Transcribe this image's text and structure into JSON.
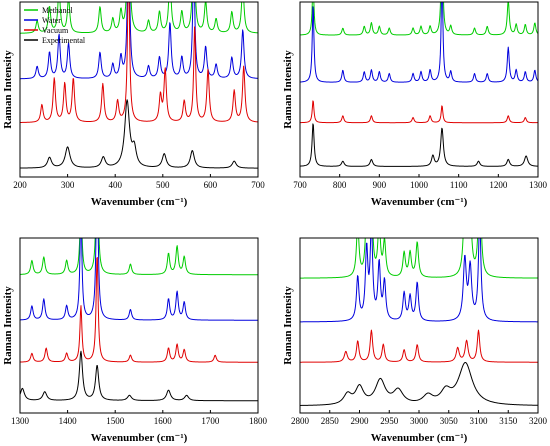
{
  "chart_data": [
    {
      "id": "p1",
      "type": "line",
      "xlabel": "Wavenumber (cm⁻¹)",
      "ylabel": "Raman Intensity",
      "xlim": [
        200,
        700
      ],
      "xticks": [
        "200",
        "300",
        "400",
        "500",
        "600",
        "700"
      ],
      "y_ticks_shown": false,
      "legend": "top-left",
      "series": [
        {
          "name": "Methanol",
          "color": "#00cc00",
          "offset": 0.78,
          "baseline": 0.04,
          "peaks": [
            [
              236,
              0.07,
              3
            ],
            [
              262,
              0.15,
              3
            ],
            [
              282,
              0.25,
              3
            ],
            [
              302,
              0.2,
              3
            ],
            [
              368,
              0.15,
              3
            ],
            [
              395,
              0.08,
              3
            ],
            [
              412,
              0.12,
              3
            ],
            [
              428,
              1.0,
              2.5
            ],
            [
              470,
              0.07,
              3
            ],
            [
              493,
              0.12,
              3
            ],
            [
              515,
              0.32,
              3
            ],
            [
              540,
              0.12,
              3
            ],
            [
              565,
              0.7,
              2.5
            ],
            [
              590,
              0.18,
              3
            ],
            [
              612,
              0.08,
              3
            ],
            [
              645,
              0.12,
              3
            ],
            [
              668,
              0.28,
              3
            ]
          ]
        },
        {
          "name": "Water",
          "color": "#0000dd",
          "offset": 0.52,
          "baseline": 0.04,
          "peaks": [
            [
              236,
              0.07,
              3
            ],
            [
              262,
              0.15,
              3
            ],
            [
              282,
              0.25,
              3
            ],
            [
              302,
              0.2,
              3
            ],
            [
              368,
              0.15,
              3
            ],
            [
              395,
              0.08,
              3
            ],
            [
              412,
              0.12,
              3
            ],
            [
              428,
              1.0,
              2.5
            ],
            [
              470,
              0.07,
              3
            ],
            [
              493,
              0.12,
              3
            ],
            [
              515,
              0.32,
              3
            ],
            [
              540,
              0.12,
              3
            ],
            [
              565,
              0.7,
              2.5
            ],
            [
              590,
              0.18,
              3
            ],
            [
              612,
              0.08,
              3
            ],
            [
              645,
              0.12,
              3
            ],
            [
              668,
              0.28,
              3
            ]
          ]
        },
        {
          "name": "Vacuum",
          "color": "#e00000",
          "offset": 0.27,
          "baseline": 0.04,
          "peaks": [
            [
              246,
              0.1,
              3
            ],
            [
              272,
              0.25,
              3
            ],
            [
              294,
              0.22,
              3
            ],
            [
              312,
              0.25,
              3
            ],
            [
              374,
              0.22,
              3
            ],
            [
              405,
              0.12,
              3
            ],
            [
              428,
              0.92,
              2.5
            ],
            [
              495,
              0.15,
              3
            ],
            [
              505,
              0.3,
              3
            ],
            [
              545,
              0.12,
              3
            ],
            [
              567,
              0.55,
              2.5
            ],
            [
              595,
              0.3,
              3
            ],
            [
              650,
              0.18,
              3
            ],
            [
              670,
              0.32,
              3
            ]
          ]
        },
        {
          "name": "Experimental",
          "color": "#000000",
          "offset": 0.02,
          "baseline": 0.03,
          "peaks": [
            [
              262,
              0.06,
              5
            ],
            [
              300,
              0.12,
              6
            ],
            [
              375,
              0.06,
              5
            ],
            [
              425,
              0.38,
              6
            ],
            [
              440,
              0.1,
              5
            ],
            [
              503,
              0.08,
              5
            ],
            [
              562,
              0.1,
              5
            ],
            [
              650,
              0.04,
              5
            ]
          ]
        }
      ]
    },
    {
      "id": "p2",
      "type": "line",
      "xlabel": "Wavenumber (cm⁻¹)",
      "ylabel": "Raman Intensity",
      "xlim": [
        700,
        1300
      ],
      "xticks": [
        "700",
        "800",
        "900",
        "1000",
        "1100",
        "1200",
        "1300"
      ],
      "y_ticks_shown": false,
      "series": [
        {
          "name": "Methanol",
          "color": "#00cc00",
          "offset": 0.77,
          "baseline": 0.04,
          "peaks": [
            [
              733,
              0.3,
              2.5
            ],
            [
              808,
              0.04,
              3
            ],
            [
              862,
              0.05,
              3
            ],
            [
              880,
              0.07,
              3
            ],
            [
              900,
              0.05,
              3
            ],
            [
              925,
              0.04,
              3
            ],
            [
              985,
              0.04,
              3
            ],
            [
              1005,
              0.05,
              3
            ],
            [
              1028,
              0.05,
              3
            ],
            [
              1058,
              0.62,
              2.5
            ],
            [
              1080,
              0.05,
              3
            ],
            [
              1140,
              0.04,
              3
            ],
            [
              1172,
              0.05,
              3
            ],
            [
              1225,
              0.2,
              3
            ],
            [
              1245,
              0.06,
              3
            ],
            [
              1268,
              0.06,
              3
            ],
            [
              1292,
              0.07,
              3
            ]
          ]
        },
        {
          "name": "Water",
          "color": "#0000dd",
          "offset": 0.5,
          "baseline": 0.04,
          "peaks": [
            [
              733,
              0.45,
              2.5
            ],
            [
              808,
              0.07,
              3
            ],
            [
              862,
              0.06,
              3
            ],
            [
              880,
              0.07,
              3
            ],
            [
              900,
              0.06,
              3
            ],
            [
              925,
              0.05,
              3
            ],
            [
              985,
              0.05,
              3
            ],
            [
              1005,
              0.06,
              3
            ],
            [
              1028,
              0.07,
              3
            ],
            [
              1058,
              0.62,
              2.5
            ],
            [
              1080,
              0.06,
              3
            ],
            [
              1140,
              0.05,
              3
            ],
            [
              1172,
              0.05,
              3
            ],
            [
              1225,
              0.2,
              3
            ],
            [
              1245,
              0.07,
              3
            ],
            [
              1268,
              0.06,
              3
            ],
            [
              1292,
              0.07,
              3
            ]
          ]
        },
        {
          "name": "Vacuum",
          "color": "#e00000",
          "offset": 0.27,
          "baseline": 0.04,
          "peaks": [
            [
              733,
              0.13,
              2.5
            ],
            [
              808,
              0.04,
              3
            ],
            [
              880,
              0.04,
              3
            ],
            [
              985,
              0.03,
              3
            ],
            [
              1028,
              0.04,
              3
            ],
            [
              1058,
              0.1,
              2.5
            ],
            [
              1225,
              0.04,
              3
            ],
            [
              1268,
              0.03,
              3
            ]
          ]
        },
        {
          "name": "Experimental",
          "color": "#000000",
          "offset": 0.02,
          "baseline": 0.04,
          "peaks": [
            [
              733,
              0.25,
              3
            ],
            [
              808,
              0.03,
              4
            ],
            [
              880,
              0.04,
              4
            ],
            [
              1035,
              0.06,
              4
            ],
            [
              1058,
              0.22,
              4
            ],
            [
              1150,
              0.03,
              4
            ],
            [
              1225,
              0.04,
              4
            ],
            [
              1270,
              0.06,
              5
            ]
          ]
        }
      ]
    },
    {
      "id": "p3",
      "type": "line",
      "xlabel": "Wavenumber (cm⁻¹)",
      "ylabel": "Raman Intensity",
      "xlim": [
        1300,
        1800
      ],
      "xticks": [
        "1300",
        "1400",
        "1500",
        "1600",
        "1700",
        "1800"
      ],
      "y_ticks_shown": false,
      "series": [
        {
          "name": "Methanol",
          "color": "#00cc00",
          "offset": 0.76,
          "baseline": 0.03,
          "peaks": [
            [
              1325,
              0.08,
              3
            ],
            [
              1350,
              0.1,
              3
            ],
            [
              1398,
              0.08,
              3
            ],
            [
              1428,
              0.42,
              2.5
            ],
            [
              1462,
              0.75,
              2.5
            ],
            [
              1532,
              0.06,
              3
            ],
            [
              1612,
              0.12,
              3
            ],
            [
              1630,
              0.16,
              3
            ],
            [
              1645,
              0.1,
              3
            ]
          ]
        },
        {
          "name": "Water",
          "color": "#0000dd",
          "offset": 0.5,
          "baseline": 0.03,
          "peaks": [
            [
              1325,
              0.08,
              3
            ],
            [
              1350,
              0.12,
              3
            ],
            [
              1398,
              0.08,
              3
            ],
            [
              1428,
              0.62,
              2.5
            ],
            [
              1462,
              0.9,
              2.5
            ],
            [
              1532,
              0.06,
              3
            ],
            [
              1612,
              0.12,
              3
            ],
            [
              1630,
              0.16,
              3
            ],
            [
              1645,
              0.1,
              3
            ]
          ]
        },
        {
          "name": "Vacuum",
          "color": "#e00000",
          "offset": 0.26,
          "baseline": 0.03,
          "peaks": [
            [
              1325,
              0.05,
              3
            ],
            [
              1355,
              0.08,
              3
            ],
            [
              1398,
              0.05,
              3
            ],
            [
              1428,
              0.32,
              2.5
            ],
            [
              1462,
              0.62,
              2.5
            ],
            [
              1532,
              0.04,
              3
            ],
            [
              1612,
              0.08,
              3
            ],
            [
              1630,
              0.1,
              3
            ],
            [
              1645,
              0.07,
              3
            ],
            [
              1710,
              0.04,
              3
            ]
          ]
        },
        {
          "name": "Experimental",
          "color": "#000000",
          "offset": 0.02,
          "baseline": 0.05,
          "peaks": [
            [
              1305,
              0.07,
              5
            ],
            [
              1352,
              0.05,
              5
            ],
            [
              1428,
              0.28,
              4
            ],
            [
              1462,
              0.2,
              4
            ],
            [
              1530,
              0.03,
              5
            ],
            [
              1612,
              0.06,
              5
            ],
            [
              1650,
              0.03,
              5
            ]
          ]
        }
      ]
    },
    {
      "id": "p4",
      "type": "line",
      "xlabel": "Wavenumber (cm⁻¹)",
      "ylabel": "Raman Intensity",
      "xlim": [
        2800,
        3200
      ],
      "xticks": [
        "2800",
        "2850",
        "2900",
        "2950",
        "3000",
        "3050",
        "3100",
        "3150",
        "3200"
      ],
      "y_ticks_shown": false,
      "series": [
        {
          "name": "Methanol",
          "color": "#00cc00",
          "offset": 0.75,
          "baseline": 0.02,
          "peaks": [
            [
              2897,
              0.3,
              2.5
            ],
            [
              2912,
              0.35,
              2.5
            ],
            [
              2920,
              0.45,
              2.5
            ],
            [
              2933,
              0.3,
              2.5
            ],
            [
              2942,
              0.2,
              2.5
            ],
            [
              2975,
              0.14,
              2.5
            ],
            [
              2985,
              0.14,
              2.5
            ],
            [
              2997,
              0.2,
              2.5
            ],
            [
              3077,
              0.4,
              3
            ],
            [
              3086,
              0.35,
              3
            ],
            [
              3102,
              0.62,
              2.5
            ]
          ]
        },
        {
          "name": "Water",
          "color": "#0000dd",
          "offset": 0.5,
          "baseline": 0.02,
          "peaks": [
            [
              2897,
              0.25,
              2.5
            ],
            [
              2912,
              0.4,
              2.5
            ],
            [
              2920,
              0.52,
              2.5
            ],
            [
              2933,
              0.32,
              2.5
            ],
            [
              2942,
              0.22,
              2.5
            ],
            [
              2975,
              0.16,
              2.5
            ],
            [
              2985,
              0.14,
              2.5
            ],
            [
              2997,
              0.22,
              2.5
            ],
            [
              3077,
              0.35,
              3
            ],
            [
              3086,
              0.3,
              3
            ],
            [
              3102,
              0.58,
              2.5
            ]
          ]
        },
        {
          "name": "Vacuum",
          "color": "#e00000",
          "offset": 0.27,
          "baseline": 0.02,
          "peaks": [
            [
              2877,
              0.06,
              3
            ],
            [
              2897,
              0.12,
              2.5
            ],
            [
              2920,
              0.18,
              2.5
            ],
            [
              2940,
              0.1,
              2.5
            ],
            [
              2975,
              0.07,
              2.5
            ],
            [
              2997,
              0.1,
              2.5
            ],
            [
              3065,
              0.08,
              3
            ],
            [
              3080,
              0.12,
              3
            ],
            [
              3100,
              0.18,
              2.5
            ]
          ]
        },
        {
          "name": "Experimental",
          "color": "#000000",
          "offset": 0.02,
          "baseline": 0.02,
          "peaks": [
            [
              2880,
              0.06,
              8
            ],
            [
              2900,
              0.1,
              8
            ],
            [
              2935,
              0.14,
              10
            ],
            [
              2965,
              0.08,
              10
            ],
            [
              3015,
              0.05,
              10
            ],
            [
              3045,
              0.07,
              10
            ],
            [
              3078,
              0.24,
              14
            ]
          ]
        }
      ]
    }
  ]
}
